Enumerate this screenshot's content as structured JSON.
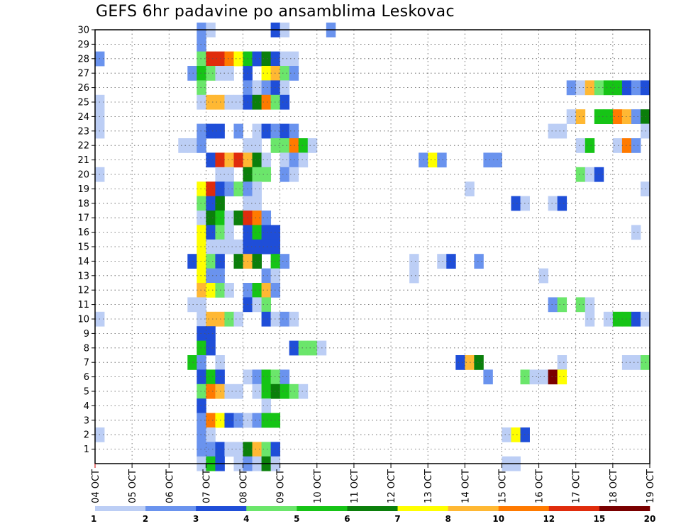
{
  "chart_data": {
    "type": "heatmap",
    "title": "GEFS 6hr padavine po ansamblima Leskovac",
    "x_ticks": [
      "04 OCT",
      "05 OCT",
      "06 OCT",
      "07 OCT",
      "08 OCT",
      "09 OCT",
      "10 OCT",
      "11 OCT",
      "12 OCT",
      "13 OCT",
      "14 OCT",
      "15 OCT",
      "16 OCT",
      "17 OCT",
      "18 OCT",
      "19 OCT"
    ],
    "y_ticks": [
      "1",
      "2",
      "3",
      "4",
      "5",
      "6",
      "7",
      "8",
      "9",
      "10",
      "11",
      "12",
      "13",
      "14",
      "15",
      "16",
      "17",
      "18",
      "19",
      "20",
      "21",
      "22",
      "23",
      "24",
      "25",
      "26",
      "27",
      "28",
      "29",
      "30"
    ],
    "xlim": [
      "04 OCT",
      "19 OCT"
    ],
    "ylim": [
      0,
      30
    ],
    "time_step_hours": 6,
    "grid": true,
    "legend_position": "bottom",
    "colorbar": {
      "labels": [
        "1",
        "2",
        "3",
        "4",
        "5",
        "6",
        "7",
        "8",
        "10",
        "12",
        "15",
        "20"
      ],
      "colors": [
        "#bccef5",
        "#6a93ee",
        "#1f4ed8",
        "#6be66b",
        "#16c416",
        "#0b7f0b",
        "#ffff00",
        "#ffb833",
        "#ff7a00",
        "#e02c0c",
        "#7a0000"
      ]
    },
    "cells_format": "[member, time_step_index_from_04_OCT_00Z, color_class_index]",
    "cells": [
      [
        30,
        11,
        1
      ],
      [
        30,
        12,
        0
      ],
      [
        30,
        19,
        2
      ],
      [
        30,
        20,
        0
      ],
      [
        30,
        25,
        1
      ],
      [
        29,
        11,
        1
      ],
      [
        28,
        0,
        1
      ],
      [
        28,
        11,
        3
      ],
      [
        28,
        12,
        9
      ],
      [
        28,
        13,
        9
      ],
      [
        28,
        14,
        8
      ],
      [
        28,
        15,
        6
      ],
      [
        28,
        16,
        4
      ],
      [
        28,
        17,
        2
      ],
      [
        28,
        18,
        5
      ],
      [
        28,
        19,
        2
      ],
      [
        28,
        20,
        0
      ],
      [
        28,
        21,
        0
      ],
      [
        27,
        10,
        1
      ],
      [
        27,
        11,
        4
      ],
      [
        27,
        12,
        3
      ],
      [
        27,
        13,
        0
      ],
      [
        27,
        14,
        0
      ],
      [
        27,
        16,
        2
      ],
      [
        27,
        18,
        6
      ],
      [
        27,
        19,
        7
      ],
      [
        27,
        20,
        3
      ],
      [
        27,
        21,
        1
      ],
      [
        26,
        11,
        3
      ],
      [
        26,
        16,
        1
      ],
      [
        26,
        17,
        0
      ],
      [
        26,
        18,
        1
      ],
      [
        26,
        19,
        2
      ],
      [
        26,
        20,
        0
      ],
      [
        26,
        51,
        1
      ],
      [
        26,
        52,
        0
      ],
      [
        26,
        53,
        7
      ],
      [
        26,
        54,
        3
      ],
      [
        26,
        55,
        4
      ],
      [
        26,
        56,
        4
      ],
      [
        26,
        57,
        2
      ],
      [
        26,
        58,
        1
      ],
      [
        26,
        59,
        2
      ],
      [
        25,
        0,
        0
      ],
      [
        25,
        11,
        0
      ],
      [
        25,
        12,
        7
      ],
      [
        25,
        13,
        7
      ],
      [
        25,
        14,
        0
      ],
      [
        25,
        15,
        0
      ],
      [
        25,
        16,
        2
      ],
      [
        25,
        17,
        5
      ],
      [
        25,
        18,
        8
      ],
      [
        25,
        19,
        3
      ],
      [
        25,
        20,
        2
      ],
      [
        24,
        0,
        0
      ],
      [
        24,
        51,
        0
      ],
      [
        24,
        52,
        7
      ],
      [
        24,
        54,
        4
      ],
      [
        24,
        55,
        4
      ],
      [
        24,
        56,
        8
      ],
      [
        24,
        57,
        7
      ],
      [
        24,
        58,
        1
      ],
      [
        24,
        59,
        5
      ],
      [
        23,
        0,
        0
      ],
      [
        23,
        11,
        1
      ],
      [
        23,
        12,
        2
      ],
      [
        23,
        13,
        2
      ],
      [
        23,
        15,
        1
      ],
      [
        23,
        17,
        0
      ],
      [
        23,
        18,
        2
      ],
      [
        23,
        19,
        1
      ],
      [
        23,
        20,
        2
      ],
      [
        23,
        21,
        1
      ],
      [
        23,
        49,
        0
      ],
      [
        23,
        50,
        0
      ],
      [
        23,
        59,
        0
      ],
      [
        22,
        9,
        0
      ],
      [
        22,
        10,
        0
      ],
      [
        22,
        11,
        1
      ],
      [
        22,
        16,
        0
      ],
      [
        22,
        17,
        0
      ],
      [
        22,
        19,
        3
      ],
      [
        22,
        20,
        3
      ],
      [
        22,
        21,
        8
      ],
      [
        22,
        22,
        4
      ],
      [
        22,
        23,
        0
      ],
      [
        22,
        52,
        0
      ],
      [
        22,
        53,
        4
      ],
      [
        22,
        56,
        0
      ],
      [
        22,
        57,
        8
      ],
      [
        22,
        58,
        1
      ],
      [
        21,
        12,
        2
      ],
      [
        21,
        13,
        9
      ],
      [
        21,
        14,
        7
      ],
      [
        21,
        15,
        9
      ],
      [
        21,
        16,
        7
      ],
      [
        21,
        17,
        5
      ],
      [
        21,
        18,
        0
      ],
      [
        21,
        20,
        0
      ],
      [
        21,
        21,
        1
      ],
      [
        21,
        22,
        0
      ],
      [
        21,
        35,
        1
      ],
      [
        21,
        36,
        6
      ],
      [
        21,
        37,
        1
      ],
      [
        21,
        42,
        1
      ],
      [
        21,
        43,
        1
      ],
      [
        20,
        0,
        0
      ],
      [
        20,
        13,
        0
      ],
      [
        20,
        14,
        0
      ],
      [
        20,
        16,
        5
      ],
      [
        20,
        17,
        3
      ],
      [
        20,
        18,
        3
      ],
      [
        20,
        20,
        1
      ],
      [
        20,
        21,
        0
      ],
      [
        20,
        52,
        3
      ],
      [
        20,
        53,
        0
      ],
      [
        20,
        54,
        2
      ],
      [
        19,
        11,
        6
      ],
      [
        19,
        12,
        9
      ],
      [
        19,
        13,
        2
      ],
      [
        19,
        14,
        1
      ],
      [
        19,
        15,
        3
      ],
      [
        19,
        16,
        1
      ],
      [
        19,
        17,
        0
      ],
      [
        19,
        40,
        0
      ],
      [
        19,
        59,
        0
      ],
      [
        18,
        11,
        3
      ],
      [
        18,
        12,
        2
      ],
      [
        18,
        13,
        5
      ],
      [
        18,
        16,
        0
      ],
      [
        18,
        17,
        0
      ],
      [
        18,
        45,
        2
      ],
      [
        18,
        46,
        0
      ],
      [
        18,
        49,
        0
      ],
      [
        18,
        50,
        2
      ],
      [
        17,
        11,
        0
      ],
      [
        17,
        12,
        5
      ],
      [
        17,
        13,
        4
      ],
      [
        17,
        14,
        0
      ],
      [
        17,
        15,
        5
      ],
      [
        17,
        16,
        9
      ],
      [
        17,
        17,
        8
      ],
      [
        17,
        18,
        1
      ],
      [
        16,
        11,
        6
      ],
      [
        16,
        12,
        2
      ],
      [
        16,
        13,
        3
      ],
      [
        16,
        14,
        0
      ],
      [
        16,
        16,
        2
      ],
      [
        16,
        17,
        4
      ],
      [
        16,
        18,
        2
      ],
      [
        16,
        19,
        2
      ],
      [
        16,
        58,
        0
      ],
      [
        15,
        11,
        6
      ],
      [
        15,
        12,
        0
      ],
      [
        15,
        13,
        0
      ],
      [
        15,
        14,
        0
      ],
      [
        15,
        15,
        0
      ],
      [
        15,
        16,
        2
      ],
      [
        15,
        17,
        2
      ],
      [
        15,
        18,
        2
      ],
      [
        15,
        19,
        2
      ],
      [
        14,
        10,
        2
      ],
      [
        14,
        11,
        6
      ],
      [
        14,
        12,
        3
      ],
      [
        14,
        13,
        2
      ],
      [
        14,
        15,
        5
      ],
      [
        14,
        16,
        7
      ],
      [
        14,
        17,
        5
      ],
      [
        14,
        19,
        4
      ],
      [
        14,
        20,
        1
      ],
      [
        14,
        34,
        0
      ],
      [
        14,
        37,
        0
      ],
      [
        14,
        38,
        2
      ],
      [
        14,
        41,
        1
      ],
      [
        13,
        11,
        6
      ],
      [
        13,
        12,
        1
      ],
      [
        13,
        13,
        1
      ],
      [
        13,
        18,
        1
      ],
      [
        13,
        19,
        0
      ],
      [
        13,
        34,
        0
      ],
      [
        13,
        48,
        0
      ],
      [
        12,
        11,
        7
      ],
      [
        12,
        12,
        6
      ],
      [
        12,
        13,
        3
      ],
      [
        12,
        14,
        0
      ],
      [
        12,
        16,
        1
      ],
      [
        12,
        17,
        4
      ],
      [
        12,
        18,
        7
      ],
      [
        12,
        19,
        1
      ],
      [
        11,
        10,
        0
      ],
      [
        11,
        11,
        0
      ],
      [
        11,
        16,
        2
      ],
      [
        11,
        17,
        0
      ],
      [
        11,
        18,
        3
      ],
      [
        11,
        49,
        1
      ],
      [
        11,
        50,
        3
      ],
      [
        11,
        52,
        3
      ],
      [
        11,
        53,
        0
      ],
      [
        10,
        0,
        0
      ],
      [
        10,
        11,
        0
      ],
      [
        10,
        12,
        7
      ],
      [
        10,
        13,
        7
      ],
      [
        10,
        14,
        3
      ],
      [
        10,
        15,
        0
      ],
      [
        10,
        18,
        2
      ],
      [
        10,
        19,
        0
      ],
      [
        10,
        20,
        1
      ],
      [
        10,
        21,
        0
      ],
      [
        10,
        53,
        0
      ],
      [
        10,
        55,
        0
      ],
      [
        10,
        56,
        4
      ],
      [
        10,
        57,
        4
      ],
      [
        10,
        58,
        2
      ],
      [
        10,
        59,
        0
      ],
      [
        9,
        11,
        2
      ],
      [
        9,
        12,
        2
      ],
      [
        8,
        11,
        4
      ],
      [
        8,
        12,
        2
      ],
      [
        8,
        21,
        2
      ],
      [
        8,
        22,
        3
      ],
      [
        8,
        23,
        3
      ],
      [
        8,
        24,
        0
      ],
      [
        7,
        10,
        4
      ],
      [
        7,
        11,
        1
      ],
      [
        7,
        13,
        0
      ],
      [
        7,
        39,
        2
      ],
      [
        7,
        40,
        7
      ],
      [
        7,
        41,
        5
      ],
      [
        7,
        50,
        0
      ],
      [
        7,
        57,
        0
      ],
      [
        7,
        58,
        0
      ],
      [
        7,
        59,
        3
      ],
      [
        6,
        11,
        2
      ],
      [
        6,
        12,
        4
      ],
      [
        6,
        13,
        2
      ],
      [
        6,
        16,
        0
      ],
      [
        6,
        17,
        1
      ],
      [
        6,
        18,
        4
      ],
      [
        6,
        19,
        3
      ],
      [
        6,
        20,
        1
      ],
      [
        6,
        42,
        1
      ],
      [
        6,
        46,
        3
      ],
      [
        6,
        47,
        0
      ],
      [
        6,
        48,
        0
      ],
      [
        6,
        49,
        10
      ],
      [
        6,
        50,
        6
      ],
      [
        5,
        11,
        3
      ],
      [
        5,
        12,
        8
      ],
      [
        5,
        13,
        7
      ],
      [
        5,
        14,
        0
      ],
      [
        5,
        15,
        0
      ],
      [
        5,
        17,
        0
      ],
      [
        5,
        18,
        4
      ],
      [
        5,
        19,
        5
      ],
      [
        5,
        20,
        4
      ],
      [
        5,
        21,
        3
      ],
      [
        5,
        22,
        0
      ],
      [
        4,
        11,
        2
      ],
      [
        4,
        18,
        0
      ],
      [
        3,
        11,
        1
      ],
      [
        3,
        12,
        8
      ],
      [
        3,
        13,
        6
      ],
      [
        3,
        14,
        2
      ],
      [
        3,
        15,
        1
      ],
      [
        3,
        16,
        0
      ],
      [
        3,
        17,
        1
      ],
      [
        3,
        18,
        4
      ],
      [
        3,
        19,
        4
      ],
      [
        2,
        0,
        0
      ],
      [
        2,
        11,
        1
      ],
      [
        2,
        12,
        0
      ],
      [
        2,
        44,
        0
      ],
      [
        2,
        45,
        6
      ],
      [
        2,
        46,
        2
      ],
      [
        1,
        11,
        1
      ],
      [
        1,
        12,
        1
      ],
      [
        1,
        13,
        2
      ],
      [
        1,
        14,
        0
      ],
      [
        1,
        15,
        0
      ],
      [
        1,
        16,
        5
      ],
      [
        1,
        17,
        7
      ],
      [
        1,
        18,
        3
      ],
      [
        1,
        19,
        2
      ],
      [
        0,
        11,
        0
      ],
      [
        0,
        12,
        4
      ],
      [
        0,
        13,
        2
      ],
      [
        0,
        15,
        0
      ],
      [
        0,
        16,
        1
      ],
      [
        0,
        17,
        0
      ],
      [
        0,
        18,
        5
      ],
      [
        0,
        19,
        0
      ],
      [
        0,
        44,
        0
      ],
      [
        0,
        45,
        0
      ]
    ]
  }
}
